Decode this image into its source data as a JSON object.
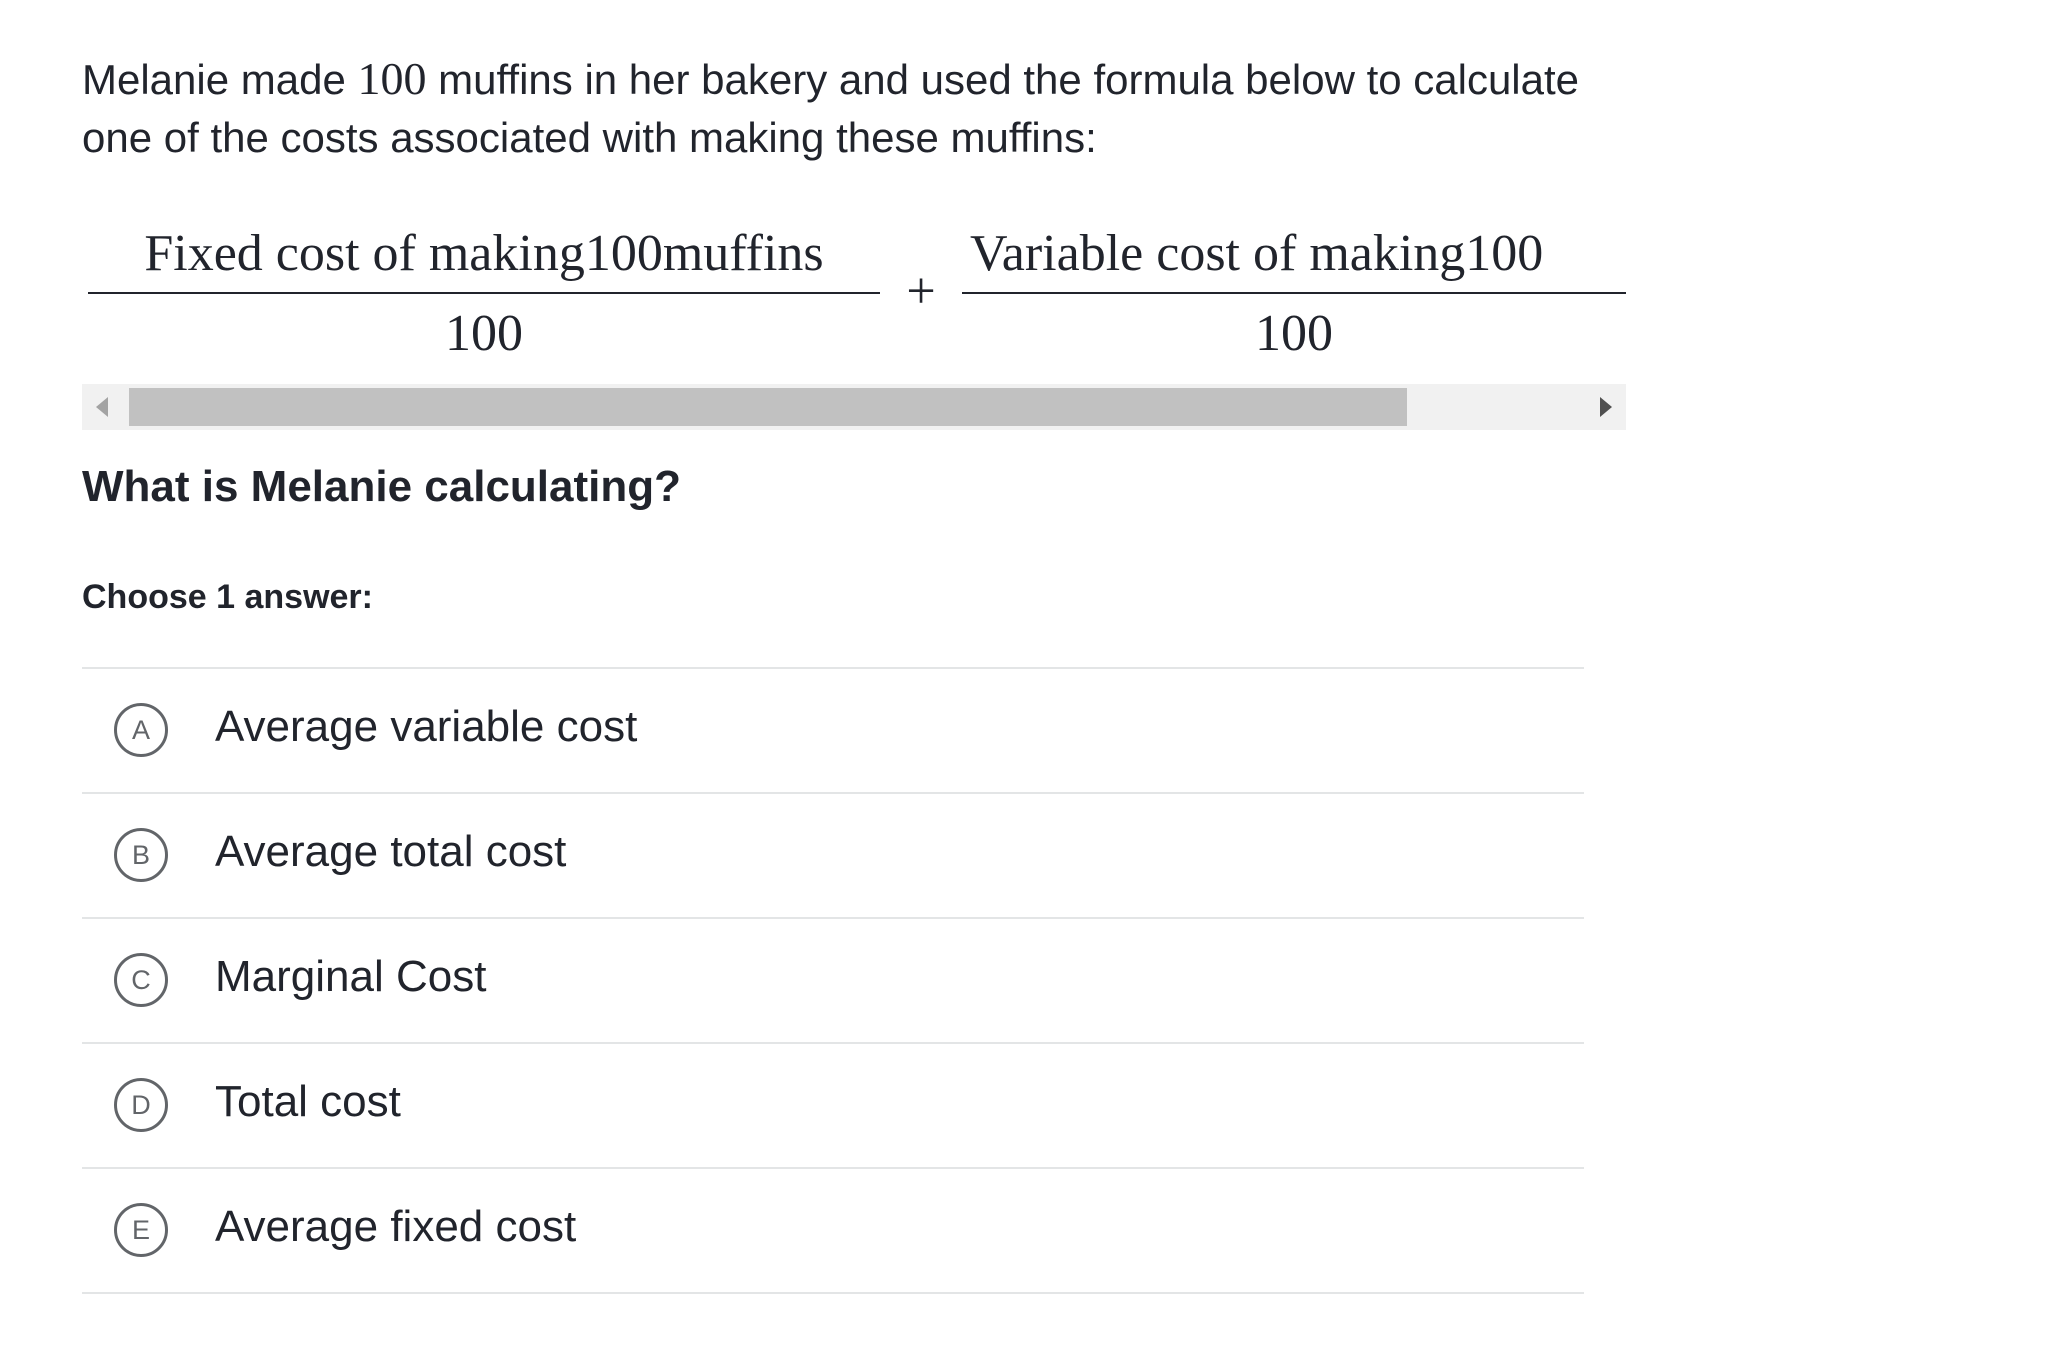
{
  "question": {
    "intro": {
      "before": "Melanie made",
      "number": "100",
      "after": "muffins in her bakery and used the formula below to calculate one of the costs associated with making these muffins:"
    },
    "formula": {
      "terms": [
        {
          "numerator": "Fixed cost of making100muffins",
          "denominator": "100"
        },
        {
          "numerator": "Variable cost of making100",
          "denominator": "100"
        }
      ],
      "operator": "+"
    },
    "prompt": "What is Melanie calculating?",
    "instruction": "Choose 1 answer:",
    "choices": [
      {
        "letter": "A",
        "text": "Average variable cost"
      },
      {
        "letter": "B",
        "text": "Average total cost"
      },
      {
        "letter": "C",
        "text": "Marginal Cost"
      },
      {
        "letter": "D",
        "text": "Total cost"
      },
      {
        "letter": "E",
        "text": "Average fixed cost"
      }
    ]
  }
}
